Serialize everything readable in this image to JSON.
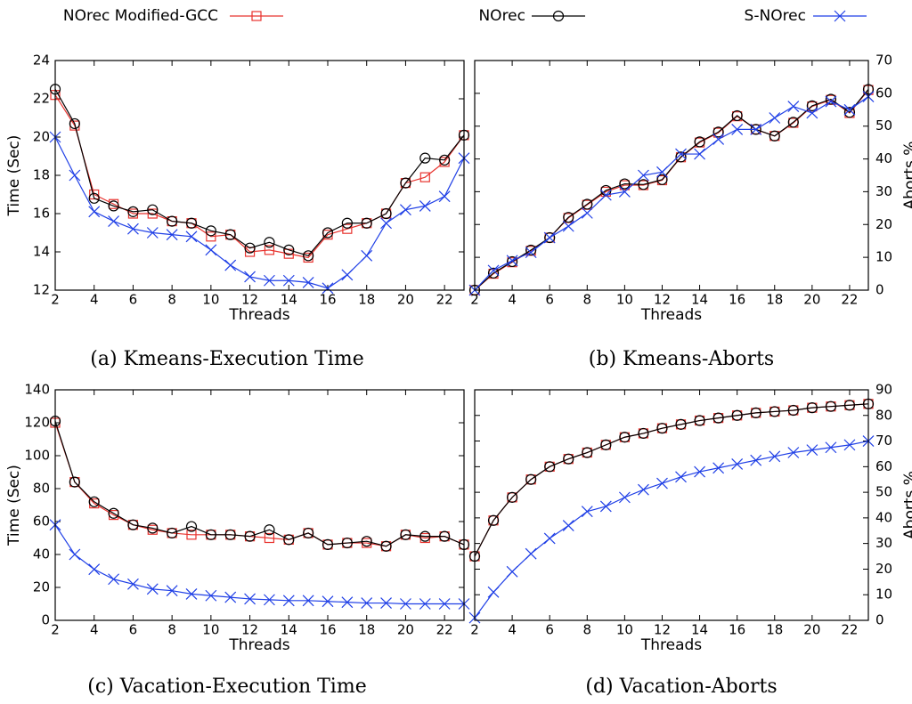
{
  "chart_data": [
    {
      "type": "line",
      "caption": "(a) Kmeans-Execution Time",
      "x_label": "Threads",
      "y_label": "Time (Sec)",
      "yaxis_side": "left",
      "x": [
        2,
        3,
        4,
        5,
        6,
        7,
        8,
        9,
        10,
        11,
        12,
        13,
        14,
        15,
        16,
        17,
        18,
        19,
        20,
        21,
        22,
        23
      ],
      "xlim": [
        2,
        23
      ],
      "xticks": [
        2,
        4,
        6,
        8,
        10,
        12,
        14,
        16,
        18,
        20,
        22
      ],
      "ylim": [
        12,
        24
      ],
      "yticks": [
        12,
        14,
        16,
        18,
        20,
        22,
        24
      ],
      "series": [
        {
          "name": "NOrec Modified-GCC",
          "color": "#e8332e",
          "marker": "square",
          "values": [
            22.2,
            20.6,
            17.0,
            16.5,
            16.0,
            16.0,
            15.6,
            15.5,
            14.8,
            14.9,
            14.0,
            14.1,
            13.9,
            13.7,
            14.9,
            15.2,
            15.5,
            16.0,
            17.6,
            17.9,
            18.7,
            20.1
          ]
        },
        {
          "name": "NOrec",
          "color": "#000000",
          "marker": "circle",
          "values": [
            22.5,
            20.7,
            16.8,
            16.4,
            16.1,
            16.2,
            15.6,
            15.5,
            15.1,
            14.9,
            14.2,
            14.5,
            14.1,
            13.8,
            15.0,
            15.5,
            15.5,
            16.0,
            17.6,
            18.9,
            18.8,
            20.1
          ]
        },
        {
          "name": "S-NOrec",
          "color": "#1f3fe6",
          "marker": "x",
          "values": [
            20.0,
            18.0,
            16.1,
            15.6,
            15.2,
            15.0,
            14.9,
            14.8,
            14.1,
            13.3,
            12.7,
            12.5,
            12.5,
            12.4,
            12.1,
            12.8,
            13.8,
            15.5,
            16.2,
            16.4,
            16.9,
            18.9
          ]
        }
      ]
    },
    {
      "type": "line",
      "caption": "(b) Kmeans-Aborts",
      "x_label": "Threads",
      "y_label": "Aborts %",
      "yaxis_side": "right",
      "x": [
        2,
        3,
        4,
        5,
        6,
        7,
        8,
        9,
        10,
        11,
        12,
        13,
        14,
        15,
        16,
        17,
        18,
        19,
        20,
        21,
        22,
        23
      ],
      "xlim": [
        2,
        23
      ],
      "xticks": [
        2,
        4,
        6,
        8,
        10,
        12,
        14,
        16,
        18,
        20,
        22
      ],
      "ylim": [
        0,
        70
      ],
      "yticks": [
        0,
        10,
        20,
        30,
        40,
        50,
        60,
        70
      ],
      "series": [
        {
          "name": "NOrec Modified-GCC",
          "color": "#e8332e",
          "marker": "square",
          "values": [
            0,
            5,
            8.5,
            12,
            16,
            22,
            26,
            30,
            32,
            32,
            33.5,
            40.5,
            45,
            48,
            53,
            49,
            47,
            51,
            56,
            58,
            54,
            61
          ]
        },
        {
          "name": "NOrec",
          "color": "#000000",
          "marker": "circle",
          "values": [
            0,
            5.2,
            8.7,
            12.2,
            16,
            22.2,
            26.2,
            30.4,
            32.4,
            32.2,
            33.7,
            40.6,
            45.2,
            48.2,
            53.2,
            49,
            47,
            51.2,
            56.2,
            58.2,
            54.2,
            61.2
          ]
        },
        {
          "name": "S-NOrec",
          "color": "#1f3fe6",
          "marker": "x",
          "values": [
            0,
            6,
            9,
            11.5,
            16,
            19.5,
            23.5,
            29,
            30,
            35,
            36,
            41.5,
            41.5,
            46,
            49,
            49,
            52.5,
            56,
            54,
            57.5,
            55,
            59
          ]
        }
      ]
    },
    {
      "type": "line",
      "caption": "(c) Vacation-Execution Time",
      "x_label": "Threads",
      "y_label": "Time (Sec)",
      "yaxis_side": "left",
      "x": [
        2,
        3,
        4,
        5,
        6,
        7,
        8,
        9,
        10,
        11,
        12,
        13,
        14,
        15,
        16,
        17,
        18,
        19,
        20,
        21,
        22,
        23
      ],
      "xlim": [
        2,
        23
      ],
      "xticks": [
        2,
        4,
        6,
        8,
        10,
        12,
        14,
        16,
        18,
        20,
        22
      ],
      "ylim": [
        0,
        140
      ],
      "yticks": [
        0,
        20,
        40,
        60,
        80,
        100,
        120,
        140
      ],
      "series": [
        {
          "name": "NOrec Modified-GCC",
          "color": "#e8332e",
          "marker": "square",
          "values": [
            120,
            84,
            71,
            64,
            58,
            55,
            53,
            52,
            52,
            52,
            51,
            50,
            49,
            53,
            46,
            47,
            47,
            45,
            52,
            50,
            51,
            46
          ]
        },
        {
          "name": "NOrec",
          "color": "#000000",
          "marker": "circle",
          "values": [
            121,
            84,
            72,
            65,
            58,
            56,
            53,
            57,
            52,
            52,
            51,
            55,
            49,
            53,
            46,
            47,
            48,
            45,
            52,
            51,
            51,
            46
          ]
        },
        {
          "name": "S-NOrec",
          "color": "#1f3fe6",
          "marker": "x",
          "values": [
            58,
            40,
            31,
            25,
            22,
            19,
            18,
            16,
            15,
            14,
            13,
            12.5,
            12,
            12,
            11.5,
            11,
            10.5,
            10.5,
            10,
            10,
            10,
            10
          ]
        }
      ]
    },
    {
      "type": "line",
      "caption": "(d) Vacation-Aborts",
      "x_label": "Threads",
      "y_label": "Aborts %",
      "yaxis_side": "right",
      "x": [
        2,
        3,
        4,
        5,
        6,
        7,
        8,
        9,
        10,
        11,
        12,
        13,
        14,
        15,
        16,
        17,
        18,
        19,
        20,
        21,
        22,
        23
      ],
      "xlim": [
        2,
        23
      ],
      "xticks": [
        2,
        4,
        6,
        8,
        10,
        12,
        14,
        16,
        18,
        20,
        22
      ],
      "ylim": [
        0,
        90
      ],
      "yticks": [
        0,
        10,
        20,
        30,
        40,
        50,
        60,
        70,
        80,
        90
      ],
      "series": [
        {
          "name": "NOrec Modified-GCC",
          "color": "#e8332e",
          "marker": "square",
          "values": [
            25,
            39,
            48,
            55,
            60,
            63,
            65.5,
            68.5,
            71.5,
            73,
            75,
            76.5,
            78,
            79,
            80,
            81,
            81.5,
            82,
            83,
            83.5,
            84,
            84.5
          ]
        },
        {
          "name": "NOrec",
          "color": "#000000",
          "marker": "circle",
          "values": [
            25,
            39,
            48,
            55,
            60,
            63,
            65.5,
            68.5,
            71.5,
            73,
            75,
            76.5,
            78,
            79,
            80,
            81,
            81.5,
            82,
            83,
            83.5,
            84,
            84.5
          ]
        },
        {
          "name": "S-NOrec",
          "color": "#1f3fe6",
          "marker": "x",
          "values": [
            1,
            11,
            19,
            26,
            32,
            37,
            42.5,
            44.5,
            48,
            51,
            53.5,
            56,
            58,
            59.5,
            61,
            62.5,
            64,
            65.5,
            66.5,
            67.5,
            68.5,
            70
          ]
        }
      ]
    }
  ]
}
